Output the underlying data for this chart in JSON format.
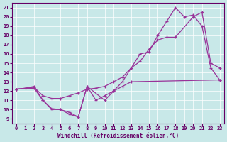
{
  "xlabel": "Windchill (Refroidissement éolien,°C)",
  "xlim": [
    -0.5,
    23.5
  ],
  "ylim": [
    8.5,
    21.5
  ],
  "yticks": [
    9,
    10,
    11,
    12,
    13,
    14,
    15,
    16,
    17,
    18,
    19,
    20,
    21
  ],
  "xticks": [
    0,
    1,
    2,
    3,
    4,
    5,
    6,
    7,
    8,
    9,
    10,
    11,
    12,
    13,
    14,
    15,
    16,
    17,
    18,
    19,
    20,
    21,
    22,
    23
  ],
  "bg_color": "#c8e8e8",
  "line_color": "#993399",
  "label_color": "#660066",
  "curveA_x": [
    0,
    2,
    3,
    4,
    5,
    6,
    7,
    8,
    10,
    11,
    12,
    13,
    14,
    15,
    16,
    17,
    18,
    19,
    20,
    21,
    22,
    23
  ],
  "curveA_y": [
    12.2,
    12.3,
    11.0,
    10.1,
    10.0,
    9.5,
    9.2,
    12.5,
    11.0,
    12.0,
    13.0,
    14.5,
    16.0,
    16.2,
    18.0,
    19.5,
    21.0,
    20.0,
    20.2,
    19.0,
    14.5,
    13.2
  ],
  "curveB_x": [
    0,
    2,
    3,
    4,
    5,
    6,
    7,
    8,
    9,
    10,
    11,
    12,
    13,
    14,
    15,
    16,
    17,
    18,
    20,
    21,
    22,
    23
  ],
  "curveB_y": [
    12.2,
    12.4,
    11.5,
    11.2,
    11.2,
    11.5,
    11.8,
    12.2,
    12.3,
    12.5,
    13.0,
    13.5,
    14.5,
    15.2,
    16.5,
    17.5,
    17.8,
    17.8,
    20.0,
    20.5,
    15.0,
    14.5
  ],
  "curveC_x": [
    0,
    1,
    2,
    3,
    4,
    5,
    6,
    7,
    8,
    9,
    10,
    11,
    12,
    13,
    23
  ],
  "curveC_y": [
    12.2,
    12.3,
    12.5,
    11.0,
    10.0,
    10.0,
    9.7,
    9.2,
    12.5,
    11.0,
    11.5,
    12.0,
    12.5,
    13.0,
    13.2
  ]
}
